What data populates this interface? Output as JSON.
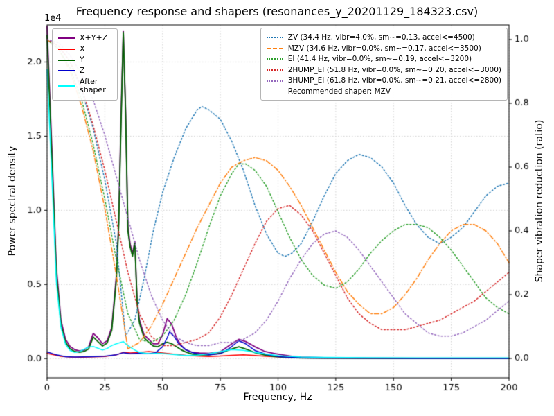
{
  "chart_data": {
    "type": "line",
    "title": "Frequency response and shapers (resonances_y_20201129_184323.csv)",
    "xlabel": "Frequency, Hz",
    "ylabel_left": "Power spectral density",
    "ylabel_right": "Shaper vibration reduction (ratio)",
    "offset_text": "1e4",
    "grid": true,
    "xlim": [
      0,
      200
    ],
    "ylim_left": [
      -1300,
      22500
    ],
    "ylim_right": [
      -0.0609,
      1.0457
    ],
    "xticks": {
      "values": [
        0,
        25,
        50,
        75,
        100,
        125,
        150,
        175,
        200
      ],
      "labels": [
        "0",
        "25",
        "50",
        "75",
        "100",
        "125",
        "150",
        "175",
        "200"
      ]
    },
    "yticks_left": {
      "values": [
        0,
        5000,
        10000,
        15000,
        20000
      ],
      "labels": [
        "0.0",
        "0.5",
        "1.0",
        "1.5",
        "2.0"
      ]
    },
    "yticks_right": {
      "values": [
        0,
        0.2,
        0.4,
        0.6,
        0.8,
        1.0
      ],
      "labels": [
        "0.0",
        "0.2",
        "0.4",
        "0.6",
        "0.8",
        "1.0"
      ]
    },
    "series": [
      {
        "name": "X+Y+Z",
        "axis": "left",
        "color": "#800080",
        "style": "solid",
        "width": 1.8,
        "x": [
          0,
          2,
          4,
          6,
          8,
          10,
          12,
          14,
          16,
          18,
          20,
          22,
          24,
          26,
          28,
          30,
          31,
          32,
          33,
          34,
          35,
          36,
          37,
          38,
          39,
          40,
          42,
          44,
          46,
          48,
          50,
          52,
          54,
          56,
          58,
          60,
          63,
          66,
          70,
          75,
          79,
          83,
          86,
          90,
          94,
          98,
          102,
          106,
          110,
          120,
          140,
          160,
          180,
          200
        ],
        "y": [
          22400,
          14500,
          6200,
          2600,
          1300,
          800,
          600,
          520,
          580,
          800,
          1700,
          1400,
          1000,
          1200,
          2100,
          5600,
          9200,
          16200,
          22100,
          16800,
          8900,
          7700,
          7100,
          7900,
          3900,
          2600,
          1600,
          1300,
          1000,
          1000,
          1600,
          2700,
          2300,
          1400,
          900,
          600,
          420,
          380,
          350,
          450,
          900,
          1300,
          1150,
          800,
          500,
          350,
          250,
          150,
          100,
          60,
          40,
          30,
          30,
          30
        ]
      },
      {
        "name": "X",
        "axis": "left",
        "color": "#ff0000",
        "style": "solid",
        "width": 1.5,
        "x": [
          0,
          3,
          6,
          10,
          15,
          20,
          25,
          30,
          33,
          36,
          40,
          44,
          48,
          52,
          56,
          60,
          65,
          70,
          75,
          80,
          85,
          90,
          95,
          100,
          105,
          110,
          120,
          140,
          160,
          180,
          200
        ],
        "y": [
          350,
          250,
          150,
          100,
          90,
          110,
          140,
          250,
          420,
          380,
          420,
          480,
          420,
          350,
          280,
          220,
          170,
          140,
          170,
          220,
          260,
          210,
          150,
          110,
          70,
          50,
          30,
          20,
          15,
          10,
          10
        ]
      },
      {
        "name": "Y",
        "axis": "left",
        "color": "#006400",
        "style": "solid",
        "width": 1.8,
        "x": [
          0,
          2,
          4,
          6,
          8,
          10,
          12,
          14,
          16,
          18,
          20,
          22,
          24,
          26,
          28,
          30,
          31,
          32,
          33,
          34,
          35,
          36,
          37,
          38,
          39,
          40,
          42,
          44,
          46,
          48,
          50,
          52,
          54,
          56,
          58,
          60,
          63,
          66,
          70,
          75,
          79,
          83,
          86,
          90,
          94,
          98,
          102,
          106,
          110,
          120,
          140,
          160,
          180,
          200
        ],
        "y": [
          21800,
          13800,
          5800,
          2300,
          1100,
          650,
          480,
          420,
          480,
          650,
          1450,
          1150,
          850,
          1050,
          1900,
          5300,
          8900,
          15600,
          22000,
          16500,
          8600,
          7500,
          6900,
          7800,
          3700,
          2400,
          1400,
          1100,
          850,
          800,
          1000,
          1100,
          1000,
          800,
          600,
          450,
          300,
          250,
          250,
          350,
          600,
          800,
          650,
          400,
          250,
          150,
          100,
          60,
          40,
          25,
          15,
          10,
          10,
          10
        ]
      },
      {
        "name": "Z",
        "axis": "left",
        "color": "#0000cd",
        "style": "solid",
        "width": 1.5,
        "x": [
          0,
          4,
          8,
          12,
          16,
          20,
          25,
          30,
          33,
          36,
          40,
          44,
          47,
          50,
          52,
          53,
          55,
          57,
          60,
          63,
          66,
          70,
          75,
          79,
          83,
          86,
          90,
          95,
          100,
          105,
          110,
          120,
          140,
          160,
          180,
          200
        ],
        "y": [
          450,
          250,
          130,
          100,
          110,
          130,
          160,
          260,
          400,
          330,
          360,
          320,
          400,
          800,
          1400,
          1800,
          1500,
          1000,
          600,
          400,
          300,
          250,
          320,
          700,
          1200,
          1000,
          550,
          280,
          140,
          80,
          50,
          30,
          20,
          15,
          10,
          10
        ]
      },
      {
        "name": "After shaper",
        "axis": "left",
        "color": "#00ffff",
        "style": "solid",
        "width": 1.5,
        "x": [
          0,
          2,
          4,
          6,
          8,
          10,
          12,
          14,
          16,
          18,
          20,
          22,
          24,
          26,
          28,
          30,
          32,
          33,
          34,
          36,
          38,
          40,
          44,
          48,
          52,
          56,
          60,
          65,
          70,
          75,
          80,
          85,
          90,
          95,
          100,
          110,
          120,
          140,
          160,
          180,
          200
        ],
        "y": [
          19500,
          12500,
          5200,
          2100,
          950,
          550,
          420,
          470,
          620,
          780,
          820,
          700,
          580,
          680,
          880,
          1000,
          1100,
          1150,
          1000,
          780,
          580,
          420,
          320,
          360,
          310,
          260,
          210,
          230,
          320,
          480,
          600,
          560,
          420,
          300,
          200,
          100,
          80,
          60,
          50,
          50,
          50
        ]
      },
      {
        "name": "ZV",
        "axis": "right",
        "color": "#1f77b4",
        "style": "dotted",
        "width": 1.5,
        "x": [
          0,
          5,
          10,
          15,
          20,
          25,
          30,
          34,
          38,
          42,
          46,
          50,
          55,
          60,
          65,
          67,
          70,
          75,
          80,
          85,
          90,
          95,
          100,
          103,
          106,
          110,
          115,
          120,
          125,
          130,
          135,
          140,
          145,
          150,
          155,
          160,
          165,
          170,
          175,
          180,
          185,
          190,
          195,
          200
        ],
        "y": [
          1.0,
          0.98,
          0.93,
          0.84,
          0.72,
          0.56,
          0.36,
          0.07,
          0.12,
          0.25,
          0.4,
          0.52,
          0.63,
          0.72,
          0.78,
          0.79,
          0.78,
          0.75,
          0.68,
          0.59,
          0.48,
          0.39,
          0.33,
          0.32,
          0.33,
          0.36,
          0.43,
          0.51,
          0.58,
          0.62,
          0.64,
          0.63,
          0.6,
          0.55,
          0.48,
          0.42,
          0.38,
          0.36,
          0.38,
          0.41,
          0.46,
          0.51,
          0.54,
          0.55
        ]
      },
      {
        "name": "MZV",
        "axis": "right",
        "color": "#ff7f0e",
        "style": "dashdot",
        "width": 1.5,
        "x": [
          0,
          5,
          10,
          15,
          20,
          25,
          30,
          35,
          40,
          45,
          50,
          55,
          60,
          65,
          70,
          75,
          80,
          85,
          90,
          95,
          100,
          105,
          110,
          115,
          120,
          125,
          130,
          135,
          140,
          145,
          150,
          155,
          160,
          165,
          170,
          175,
          180,
          185,
          190,
          195,
          200
        ],
        "y": [
          1.0,
          0.97,
          0.9,
          0.79,
          0.65,
          0.47,
          0.26,
          0.03,
          0.05,
          0.1,
          0.17,
          0.25,
          0.33,
          0.41,
          0.48,
          0.55,
          0.6,
          0.62,
          0.63,
          0.62,
          0.59,
          0.54,
          0.48,
          0.41,
          0.34,
          0.27,
          0.21,
          0.17,
          0.14,
          0.14,
          0.16,
          0.2,
          0.25,
          0.31,
          0.36,
          0.4,
          0.42,
          0.42,
          0.4,
          0.36,
          0.3
        ]
      },
      {
        "name": "EI",
        "axis": "right",
        "color": "#2ca02c",
        "style": "dotted",
        "width": 1.5,
        "x": [
          0,
          5,
          10,
          15,
          20,
          25,
          30,
          35,
          40,
          45,
          50,
          55,
          60,
          65,
          70,
          75,
          80,
          83,
          86,
          90,
          95,
          100,
          105,
          110,
          115,
          120,
          125,
          130,
          135,
          140,
          145,
          150,
          155,
          160,
          165,
          170,
          175,
          180,
          185,
          190,
          195,
          200
        ],
        "y": [
          1.0,
          0.97,
          0.91,
          0.81,
          0.67,
          0.5,
          0.31,
          0.14,
          0.06,
          0.05,
          0.07,
          0.12,
          0.2,
          0.3,
          0.41,
          0.51,
          0.58,
          0.61,
          0.61,
          0.59,
          0.54,
          0.46,
          0.38,
          0.31,
          0.26,
          0.23,
          0.22,
          0.24,
          0.28,
          0.33,
          0.37,
          0.4,
          0.42,
          0.42,
          0.41,
          0.38,
          0.34,
          0.29,
          0.24,
          0.19,
          0.16,
          0.14
        ]
      },
      {
        "name": "2HUMP_EI",
        "axis": "right",
        "color": "#d62728",
        "style": "dotted",
        "width": 1.5,
        "x": [
          0,
          5,
          10,
          15,
          20,
          25,
          30,
          35,
          40,
          45,
          50,
          55,
          60,
          65,
          70,
          75,
          80,
          85,
          90,
          95,
          100,
          105,
          110,
          115,
          120,
          125,
          130,
          135,
          140,
          145,
          150,
          155,
          160,
          165,
          170,
          175,
          180,
          185,
          190,
          195,
          200
        ],
        "y": [
          1.0,
          0.98,
          0.93,
          0.85,
          0.73,
          0.59,
          0.43,
          0.27,
          0.14,
          0.07,
          0.04,
          0.04,
          0.05,
          0.06,
          0.08,
          0.13,
          0.2,
          0.28,
          0.36,
          0.43,
          0.47,
          0.48,
          0.45,
          0.4,
          0.33,
          0.26,
          0.19,
          0.14,
          0.11,
          0.09,
          0.09,
          0.09,
          0.1,
          0.11,
          0.12,
          0.14,
          0.16,
          0.18,
          0.21,
          0.24,
          0.27
        ]
      },
      {
        "name": "3HUMP_EI",
        "axis": "right",
        "color": "#9467bd",
        "style": "dotted",
        "width": 1.5,
        "x": [
          0,
          5,
          10,
          15,
          20,
          25,
          30,
          35,
          40,
          45,
          50,
          55,
          60,
          65,
          70,
          75,
          80,
          85,
          90,
          95,
          100,
          105,
          110,
          115,
          120,
          125,
          130,
          135,
          140,
          145,
          150,
          155,
          160,
          165,
          170,
          175,
          180,
          185,
          190,
          195,
          200
        ],
        "y": [
          1.0,
          0.99,
          0.95,
          0.89,
          0.81,
          0.7,
          0.57,
          0.44,
          0.31,
          0.2,
          0.12,
          0.07,
          0.05,
          0.04,
          0.04,
          0.05,
          0.05,
          0.06,
          0.08,
          0.12,
          0.18,
          0.25,
          0.31,
          0.36,
          0.39,
          0.4,
          0.38,
          0.34,
          0.29,
          0.24,
          0.19,
          0.14,
          0.11,
          0.08,
          0.07,
          0.07,
          0.08,
          0.1,
          0.12,
          0.15,
          0.18
        ]
      }
    ]
  },
  "legend_psd": {
    "items": [
      {
        "label": "X+Y+Z",
        "color": "#800080",
        "style": "solid"
      },
      {
        "label": "X",
        "color": "#ff0000",
        "style": "solid"
      },
      {
        "label": "Y",
        "color": "#006400",
        "style": "solid"
      },
      {
        "label": "Z",
        "color": "#0000cd",
        "style": "solid"
      },
      {
        "label": "After shaper",
        "color": "#00ffff",
        "style": "solid"
      }
    ]
  },
  "legend_shapers": {
    "items": [
      {
        "label": "ZV (34.4 Hz, vibr=4.0%, sm~=0.13, accel<=4500)",
        "color": "#1f77b4",
        "style": "dotted"
      },
      {
        "label": "MZV (34.6 Hz, vibr=0.0%, sm~=0.17, accel<=3500)",
        "color": "#ff7f0e",
        "style": "dashdot"
      },
      {
        "label": "EI (41.4 Hz, vibr=0.0%, sm~=0.19, accel<=3200)",
        "color": "#2ca02c",
        "style": "dotted"
      },
      {
        "label": "2HUMP_EI (51.8 Hz, vibr=0.0%, sm~=0.20, accel<=3000)",
        "color": "#d62728",
        "style": "dotted"
      },
      {
        "label": "3HUMP_EI (61.8 Hz, vibr=0.0%, sm~=0.21, accel<=2800)",
        "color": "#9467bd",
        "style": "dotted"
      }
    ],
    "note": "Recommended shaper: MZV"
  }
}
